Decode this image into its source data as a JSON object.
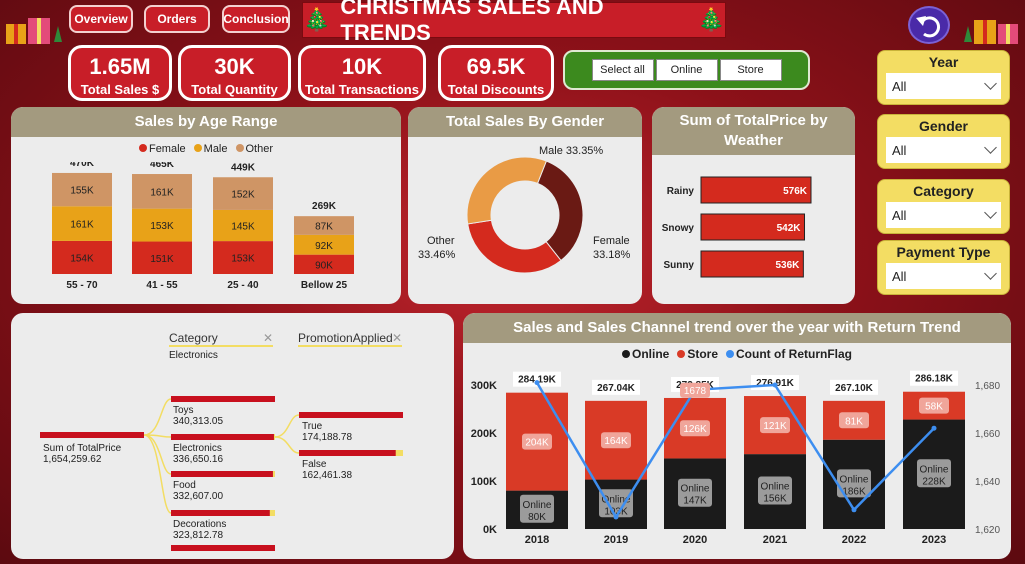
{
  "nav": {
    "overview": "Overview",
    "orders": "Orders",
    "conclusion": "Conclusion"
  },
  "title": "CHRISTMAS SALES AND TRENDS",
  "kpis": [
    {
      "value": "1.65M",
      "label": "Total Sales $"
    },
    {
      "value": "30K",
      "label": "Total Quantity"
    },
    {
      "value": "10K",
      "label": "Total Transactions"
    },
    {
      "value": "69.5K",
      "label": "Total Discounts"
    }
  ],
  "channel_slicer": {
    "select_all": "Select all",
    "online": "Online",
    "store": "Store"
  },
  "filters": [
    {
      "title": "Year",
      "value": "All"
    },
    {
      "title": "Gender",
      "value": "All"
    },
    {
      "title": "Category",
      "value": "All"
    },
    {
      "title": "Payment Type",
      "value": "All"
    }
  ],
  "age_panel": {
    "title": "Sales by Age Range",
    "legend": [
      "Female",
      "Male",
      "Other"
    ]
  },
  "gender_panel": {
    "title": "Total Sales By Gender"
  },
  "weather_panel": {
    "title": "Sum of TotalPrice by Weather"
  },
  "tree_panel": {
    "cat_header": "Category",
    "promo_header": "PromotionApplied",
    "cat_selected": "Electronics",
    "root_label": "Sum of TotalPrice",
    "root_value": "1,654,259.62",
    "categories": [
      {
        "name": "Toys",
        "value": "340,313.05",
        "fill": 1.0
      },
      {
        "name": "Electronics",
        "value": "336,650.16",
        "fill": 0.99
      },
      {
        "name": "Food",
        "value": "332,607.00",
        "fill": 0.98
      },
      {
        "name": "Decorations",
        "value": "323,812.78",
        "fill": 0.95
      }
    ],
    "promos": [
      {
        "name": "True",
        "value": "174,188.78",
        "fill": 1.0
      },
      {
        "name": "False",
        "value": "162,461.38",
        "fill": 0.93
      }
    ]
  },
  "trend_panel": {
    "title": "Sales and Sales Channel trend over the year with Return Trend",
    "legend": [
      "Online",
      "Store",
      "Count of ReturnFlag"
    ]
  },
  "colors": {
    "female": "#d42a1e",
    "male": "#e8a218",
    "other": "#cf9565",
    "online": "#1b1b1b",
    "store": "#d93a26",
    "return": "#3d8ef0",
    "donut_male": "#6a1a14",
    "donut_other": "#e99b45"
  },
  "chart_data": [
    {
      "type": "bar",
      "title": "Sales by Age Range",
      "categories": [
        "55 - 70",
        "41 - 55",
        "25 - 40",
        "Bellow 25"
      ],
      "totals": [
        "470K",
        "465K",
        "449K",
        "269K"
      ],
      "series": [
        {
          "name": "Female",
          "values": [
            154,
            151,
            153,
            90
          ],
          "labels": [
            "154K",
            "151K",
            "153K",
            "90K"
          ]
        },
        {
          "name": "Male",
          "values": [
            161,
            153,
            145,
            92
          ],
          "labels": [
            "161K",
            "153K",
            "145K",
            "92K"
          ]
        },
        {
          "name": "Other",
          "values": [
            155,
            161,
            152,
            87
          ],
          "labels": [
            "155K",
            "161K",
            "152K",
            "87K"
          ]
        }
      ]
    },
    {
      "type": "pie",
      "title": "Total Sales By Gender",
      "slices": [
        {
          "name": "Male",
          "value": 33.35,
          "label": "Male 33.35%"
        },
        {
          "name": "Female",
          "value": 33.18,
          "label": "Female 33.18%"
        },
        {
          "name": "Other",
          "value": 33.46,
          "label": "Other 33.46%"
        }
      ]
    },
    {
      "type": "bar",
      "title": "Sum of TotalPrice by Weather",
      "categories": [
        "Rainy",
        "Snowy",
        "Sunny"
      ],
      "values": [
        576,
        542,
        536
      ],
      "labels": [
        "576K",
        "542K",
        "536K"
      ]
    },
    {
      "type": "bar",
      "title": "Sales and Sales Channel trend over the year with Return Trend",
      "categories": [
        "2018",
        "2019",
        "2020",
        "2021",
        "2022",
        "2023"
      ],
      "totals": [
        "284.19K",
        "267.04K",
        "272.85K",
        "276.91K",
        "267.10K",
        "286.18K"
      ],
      "series": [
        {
          "name": "Online",
          "values": [
            80,
            103,
            147,
            156,
            186,
            228
          ],
          "labels": [
            "Online 80K",
            "Online 103K",
            "Online 147K",
            "Online 156K",
            "Online 186K",
            "Online 228K"
          ]
        },
        {
          "name": "Store",
          "values": [
            204,
            164,
            126,
            121,
            81,
            58
          ],
          "labels": [
            "204K",
            "164K",
            "126K",
            "121K",
            "81K",
            "58K"
          ]
        },
        {
          "name": "Count of ReturnFlag",
          "values": [
            1681,
            1625,
            1678,
            1680,
            1628,
            1662
          ],
          "point_labels": [
            "",
            "",
            "1678",
            "",
            "",
            ""
          ]
        }
      ],
      "y_ticks": [
        "0K",
        "100K",
        "200K",
        "300K"
      ],
      "y2_ticks": [
        "1,620",
        "1,640",
        "1,660",
        "1,680"
      ],
      "ylim": [
        0,
        300
      ],
      "y2lim": [
        1620,
        1685
      ]
    }
  ]
}
